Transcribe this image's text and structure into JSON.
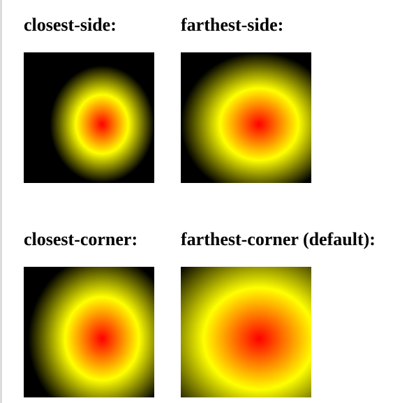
{
  "demos": [
    {
      "label": "closest-side:",
      "gradient": {
        "shape": "ellipse",
        "size": "closest-side",
        "center": "60% 55%",
        "stops": [
          "red",
          "yellow",
          "black"
        ]
      }
    },
    {
      "label": "farthest-side:",
      "gradient": {
        "shape": "ellipse",
        "size": "farthest-side",
        "center": "60% 55%",
        "stops": [
          "red",
          "yellow",
          "black"
        ]
      }
    },
    {
      "label": "closest-corner:",
      "gradient": {
        "shape": "ellipse",
        "size": "closest-corner",
        "center": "60% 55%",
        "stops": [
          "red",
          "yellow",
          "black"
        ]
      }
    },
    {
      "label": "farthest-corner (default):",
      "gradient": {
        "shape": "ellipse",
        "size": "farthest-corner",
        "center": "60% 55%",
        "stops": [
          "red",
          "yellow",
          "black"
        ]
      }
    }
  ],
  "colors": {
    "inner": "#ff0000",
    "middle": "#ffff00",
    "outer": "#000000"
  }
}
